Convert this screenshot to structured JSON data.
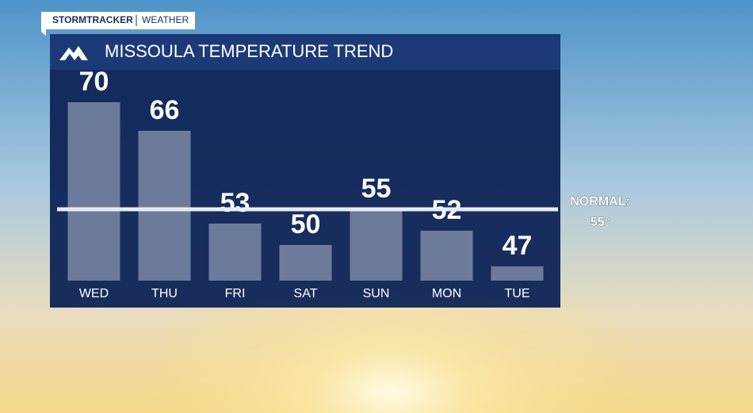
{
  "brand": {
    "name": "STORMTRACKER",
    "section": "WEATHER"
  },
  "chart_data": {
    "type": "bar",
    "title": "MISSOULA TEMPERATURE TREND",
    "categories": [
      "WED",
      "THU",
      "FRI",
      "SAT",
      "SUN",
      "MON",
      "TUE"
    ],
    "values": [
      70,
      66,
      53,
      50,
      55,
      52,
      47
    ],
    "color": "#7d8aa6",
    "ylim": [
      45,
      75
    ],
    "reference_line": {
      "value": 55,
      "label": "NORMAL:",
      "value_label": "55°"
    }
  }
}
